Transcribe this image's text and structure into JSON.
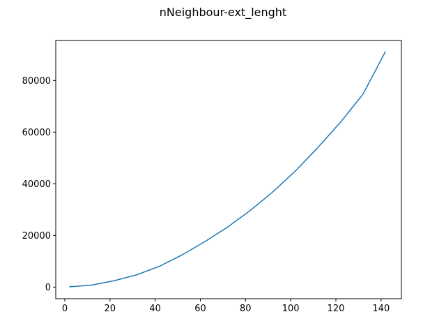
{
  "chart_data": {
    "type": "line",
    "title": "nNeighbour-ext_lenght",
    "xlabel": "",
    "ylabel": "",
    "xlim": [
      -4,
      149
    ],
    "ylim": [
      -4500,
      95500
    ],
    "x_ticks": [
      0,
      20,
      40,
      60,
      80,
      100,
      120,
      140
    ],
    "y_ticks": [
      0,
      20000,
      40000,
      60000,
      80000
    ],
    "x_tick_labels": [
      "0",
      "20",
      "40",
      "60",
      "80",
      "100",
      "120",
      "140"
    ],
    "y_tick_labels": [
      "0",
      "20000",
      "40000",
      "60000",
      "80000"
    ],
    "grid": false,
    "legend": "none",
    "series": [
      {
        "color": "#1f77b4",
        "x": [
          2,
          12,
          22,
          32,
          42,
          52,
          62,
          72,
          82,
          92,
          102,
          112,
          122,
          132,
          142
        ],
        "y": [
          100,
          800,
          2500,
          4800,
          8100,
          12500,
          17600,
          23200,
          29600,
          36800,
          44900,
          54000,
          63800,
          74700,
          91300
        ]
      }
    ]
  }
}
